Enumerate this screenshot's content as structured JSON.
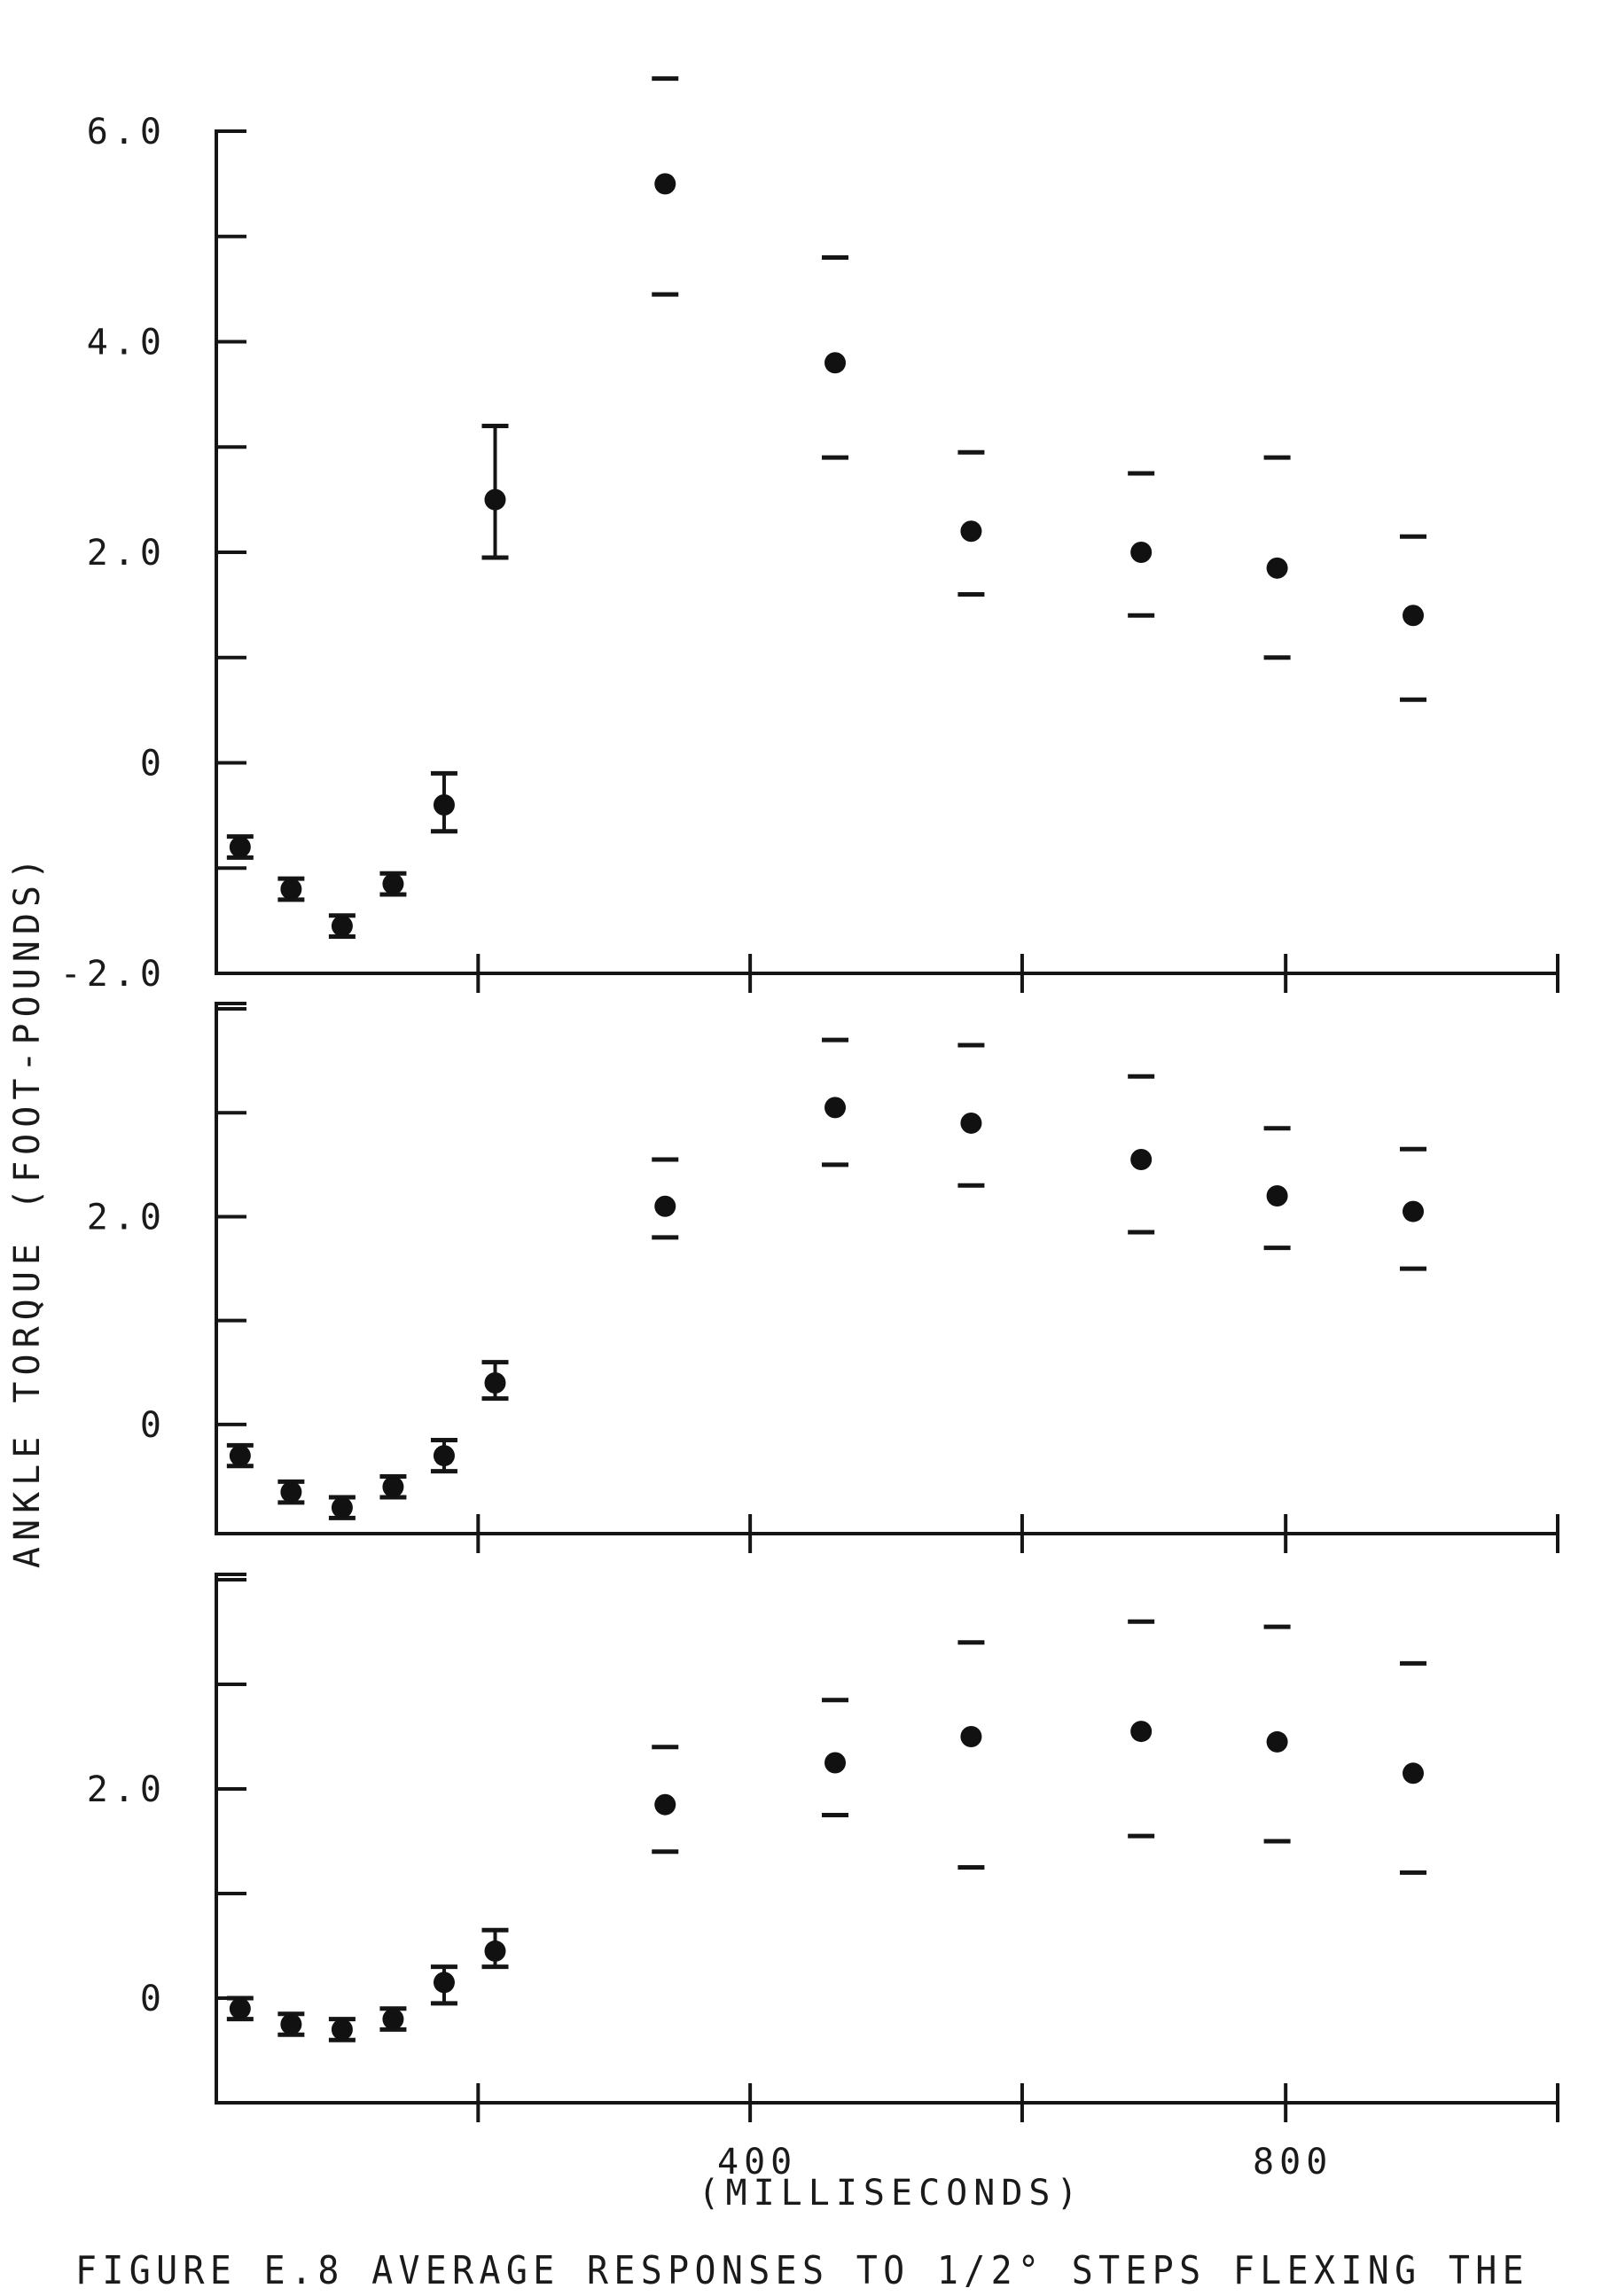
{
  "figure": {
    "caption": "FIGURE E.8  AVERAGE RESPONSES TO 1/2° STEPS FLEXING THE",
    "ylabel": "ANKLE TORQUE (FOOT-POUNDS)",
    "xlabel": "(MILLISECONDS)"
  },
  "chart_data": [
    {
      "type": "scatter",
      "panel": "top",
      "x": [
        20,
        80,
        140,
        200,
        260,
        320,
        520,
        720,
        880,
        1080,
        1240,
        1400
      ],
      "mean": [
        -0.8,
        -1.2,
        -1.55,
        -1.15,
        -0.4,
        2.5,
        5.5,
        3.8,
        2.2,
        2.0,
        1.85,
        1.4
      ],
      "upper": [
        -0.7,
        -1.1,
        -1.45,
        -1.05,
        -0.1,
        3.2,
        6.5,
        4.8,
        2.95,
        2.75,
        2.9,
        2.15
      ],
      "lower": [
        -0.9,
        -1.3,
        -1.65,
        -1.25,
        -0.65,
        1.95,
        4.45,
        2.9,
        1.6,
        1.4,
        1.0,
        0.6
      ],
      "ylim": [
        -2.0,
        6.0
      ],
      "xlim": [
        -8,
        1570
      ],
      "yticks": [
        -2.0,
        -1.0,
        0,
        1.0,
        2.0,
        3.0,
        4.0,
        5.0,
        6.0
      ],
      "ytick_labels": [
        "-2.0",
        "0",
        "2.0",
        "4.0",
        "6.0"
      ],
      "ytick_label_values": [
        -2.0,
        0,
        2.0,
        4.0,
        6.0
      ],
      "xticks": [
        300,
        620,
        940,
        1250,
        1570
      ],
      "xtick_labels": [],
      "grid": false,
      "error_bars": true
    },
    {
      "type": "scatter",
      "panel": "middle",
      "x": [
        20,
        80,
        140,
        200,
        260,
        320,
        520,
        720,
        880,
        1080,
        1240,
        1400
      ],
      "mean": [
        -0.3,
        -0.65,
        -0.8,
        -0.6,
        -0.3,
        0.4,
        2.1,
        3.05,
        2.9,
        2.55,
        2.2,
        2.05
      ],
      "upper": [
        -0.2,
        -0.55,
        -0.7,
        -0.5,
        -0.15,
        0.6,
        2.55,
        3.7,
        3.65,
        3.35,
        2.85,
        2.65
      ],
      "lower": [
        -0.4,
        -0.75,
        -0.9,
        -0.7,
        -0.45,
        0.25,
        1.8,
        2.5,
        2.3,
        1.85,
        1.7,
        1.5
      ],
      "ylim": [
        -1.05,
        4.0
      ],
      "xlim": [
        -8,
        1570
      ],
      "yticks": [
        0,
        1.0,
        2.0,
        3.0,
        4.0
      ],
      "ytick_labels": [
        "0",
        "2.0"
      ],
      "ytick_label_values": [
        0,
        2.0
      ],
      "xticks": [
        300,
        620,
        940,
        1250,
        1570
      ],
      "xtick_labels": [],
      "grid": false,
      "error_bars": true
    },
    {
      "type": "scatter",
      "panel": "bottom",
      "x": [
        20,
        80,
        140,
        200,
        260,
        320,
        520,
        720,
        880,
        1080,
        1240,
        1400
      ],
      "mean": [
        -0.1,
        -0.25,
        -0.3,
        -0.2,
        0.15,
        0.45,
        1.85,
        2.25,
        2.5,
        2.55,
        2.45,
        2.15
      ],
      "upper": [
        0.0,
        -0.15,
        -0.2,
        -0.1,
        0.3,
        0.65,
        2.4,
        2.85,
        3.4,
        3.6,
        3.55,
        3.2
      ],
      "lower": [
        -0.2,
        -0.35,
        -0.4,
        -0.3,
        -0.05,
        0.3,
        1.4,
        1.75,
        1.25,
        1.55,
        1.5,
        1.2
      ],
      "ylim": [
        -1.0,
        4.0
      ],
      "xlim": [
        -8,
        1570
      ],
      "yticks": [
        0,
        1.0,
        2.0,
        3.0,
        4.0
      ],
      "ytick_labels": [
        "0",
        "2.0"
      ],
      "ytick_label_values": [
        0,
        2.0
      ],
      "xticks": [
        300,
        620,
        940,
        1250,
        1570
      ],
      "xtick_labels": [
        "400",
        "800"
      ],
      "xtick_label_values": [
        620,
        1250
      ],
      "grid": false,
      "error_bars": true
    }
  ]
}
